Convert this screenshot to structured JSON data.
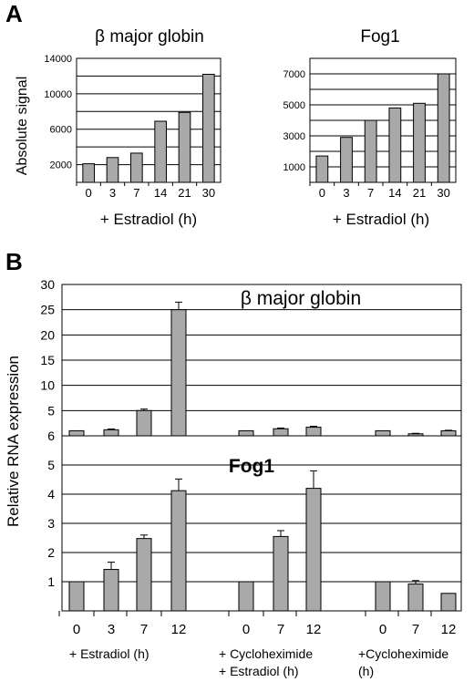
{
  "panels": {
    "a": "A",
    "b": "B"
  },
  "styles": {
    "bar_fill": "#a9a9a9",
    "bar_stroke": "#000000",
    "grid": "#000000",
    "background": "#ffffff"
  },
  "chart_data": [
    {
      "type": "bar",
      "title": "β major globin",
      "ylabel": "Absolute signal",
      "xlabel": "+ Estradiol (h)",
      "categories": [
        "0",
        "3",
        "7",
        "14",
        "21",
        "30"
      ],
      "values": [
        2100,
        2800,
        3300,
        6900,
        7900,
        12200
      ],
      "ylim": [
        0,
        14000
      ],
      "yticks": [
        2000,
        6000,
        10000,
        14000
      ],
      "grid": true
    },
    {
      "type": "bar",
      "title": "Fog1",
      "ylabel": "",
      "xlabel": "+ Estradiol (h)",
      "categories": [
        "0",
        "3",
        "7",
        "14",
        "21",
        "30"
      ],
      "values": [
        1700,
        2900,
        4000,
        4800,
        5100,
        7000
      ],
      "ylim": [
        0,
        8000
      ],
      "yticks": [
        1000,
        3000,
        5000,
        7000
      ],
      "grid": true
    },
    {
      "type": "bar",
      "title": "β major globin",
      "ylabel": "Relative RNA expression",
      "ylim": [
        0,
        30
      ],
      "yticks": [
        5,
        10,
        15,
        20,
        25,
        30
      ],
      "grid": true,
      "groups": [
        {
          "label": [
            "+ Estradiol (h)"
          ],
          "categories": [
            "0",
            "3",
            "7",
            "12"
          ],
          "values": [
            1,
            1.2,
            5,
            25
          ],
          "errors": [
            0,
            0.15,
            0.3,
            1.5
          ]
        },
        {
          "label": [
            "+ Cycloheximide",
            "+ Estradiol (h)"
          ],
          "categories": [
            "0",
            "7",
            "12"
          ],
          "values": [
            1,
            1.4,
            1.7
          ],
          "errors": [
            0,
            0.15,
            0.2
          ]
        },
        {
          "label": [
            "+Cycloheximide",
            "(h)"
          ],
          "categories": [
            "0",
            "7",
            "12"
          ],
          "values": [
            1,
            0.4,
            1
          ],
          "errors": [
            0,
            0.1,
            0.1
          ]
        }
      ]
    },
    {
      "type": "bar",
      "title": "Fog1",
      "ylabel": "Relative RNA expression",
      "ylim": [
        0,
        6
      ],
      "yticks": [
        1,
        2,
        3,
        4,
        5,
        6
      ],
      "grid": true,
      "groups": [
        {
          "label": [
            "+ Estradiol (h)"
          ],
          "categories": [
            "0",
            "3",
            "7",
            "12"
          ],
          "values": [
            1,
            1.42,
            2.48,
            4.12
          ],
          "errors": [
            0,
            0.25,
            0.12,
            0.4
          ]
        },
        {
          "label": [
            "+ Cycloheximide",
            "+ Estradiol (h)"
          ],
          "categories": [
            "0",
            "7",
            "12"
          ],
          "values": [
            1,
            2.55,
            4.2
          ],
          "errors": [
            0,
            0.2,
            0.6
          ]
        },
        {
          "label": [
            "+Cycloheximide",
            "(h)"
          ],
          "categories": [
            "0",
            "7",
            "12"
          ],
          "values": [
            1,
            0.92,
            0.6
          ],
          "errors": [
            0,
            0.12,
            0
          ]
        }
      ]
    }
  ]
}
